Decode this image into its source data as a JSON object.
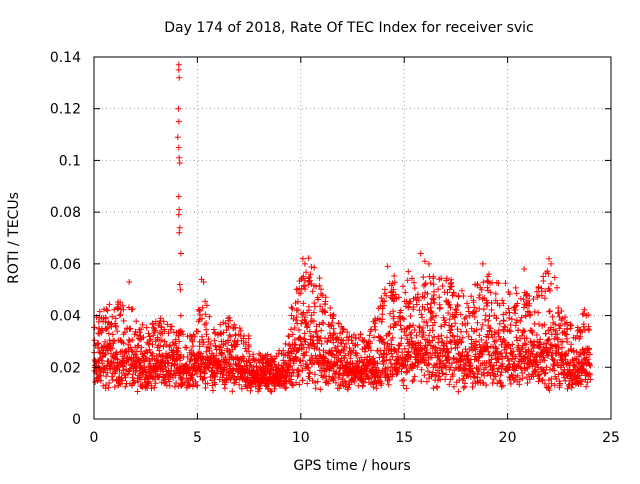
{
  "chart_data": {
    "type": "scatter",
    "title": "Day 174 of 2018, Rate Of TEC Index for receiver svic",
    "xlabel": "GPS time / hours",
    "ylabel": "ROTI / TECUs",
    "xlim": [
      0,
      25
    ],
    "ylim": [
      0,
      0.14
    ],
    "xticks": [
      0,
      5,
      10,
      15,
      20,
      25
    ],
    "xtick_labels": [
      "0",
      "5",
      "10",
      "15",
      "20",
      "25"
    ],
    "yticks": [
      0,
      0.02,
      0.04,
      0.06,
      0.08,
      0.1,
      0.12,
      0.14
    ],
    "ytick_labels": [
      "0",
      "0.02",
      "0.04",
      "0.06",
      "0.08",
      "0.1",
      "0.12",
      "0.14"
    ],
    "grid": true,
    "marker": "+",
    "color": "#ff0000",
    "series": [
      {
        "name": "ROTI",
        "data_span_hours": [
          0,
          24
        ],
        "baseline_range": [
          0.006,
          0.045
        ],
        "notable_points": [
          {
            "x": 4.1,
            "y": 0.137
          },
          {
            "x": 4.1,
            "y": 0.135
          },
          {
            "x": 4.12,
            "y": 0.132
          },
          {
            "x": 4.08,
            "y": 0.12
          },
          {
            "x": 4.1,
            "y": 0.115
          },
          {
            "x": 4.05,
            "y": 0.109
          },
          {
            "x": 4.1,
            "y": 0.105
          },
          {
            "x": 4.12,
            "y": 0.101
          },
          {
            "x": 4.15,
            "y": 0.099
          },
          {
            "x": 4.1,
            "y": 0.086
          },
          {
            "x": 4.12,
            "y": 0.081
          },
          {
            "x": 4.1,
            "y": 0.079
          },
          {
            "x": 4.15,
            "y": 0.074
          },
          {
            "x": 4.12,
            "y": 0.072
          },
          {
            "x": 4.2,
            "y": 0.064
          },
          {
            "x": 4.15,
            "y": 0.052
          },
          {
            "x": 4.18,
            "y": 0.05
          },
          {
            "x": 4.2,
            "y": 0.04
          },
          {
            "x": 5.2,
            "y": 0.054
          },
          {
            "x": 5.3,
            "y": 0.053
          },
          {
            "x": 10.1,
            "y": 0.062
          },
          {
            "x": 10.2,
            "y": 0.06
          },
          {
            "x": 14.2,
            "y": 0.059
          },
          {
            "x": 15.2,
            "y": 0.057
          },
          {
            "x": 15.8,
            "y": 0.064
          },
          {
            "x": 16.0,
            "y": 0.061
          },
          {
            "x": 16.2,
            "y": 0.06
          },
          {
            "x": 18.8,
            "y": 0.06
          },
          {
            "x": 19.1,
            "y": 0.056
          },
          {
            "x": 20.8,
            "y": 0.058
          },
          {
            "x": 22.0,
            "y": 0.062
          },
          {
            "x": 22.1,
            "y": 0.06
          },
          {
            "x": 23.8,
            "y": 0.04
          },
          {
            "x": 1.7,
            "y": 0.053
          }
        ]
      }
    ]
  }
}
